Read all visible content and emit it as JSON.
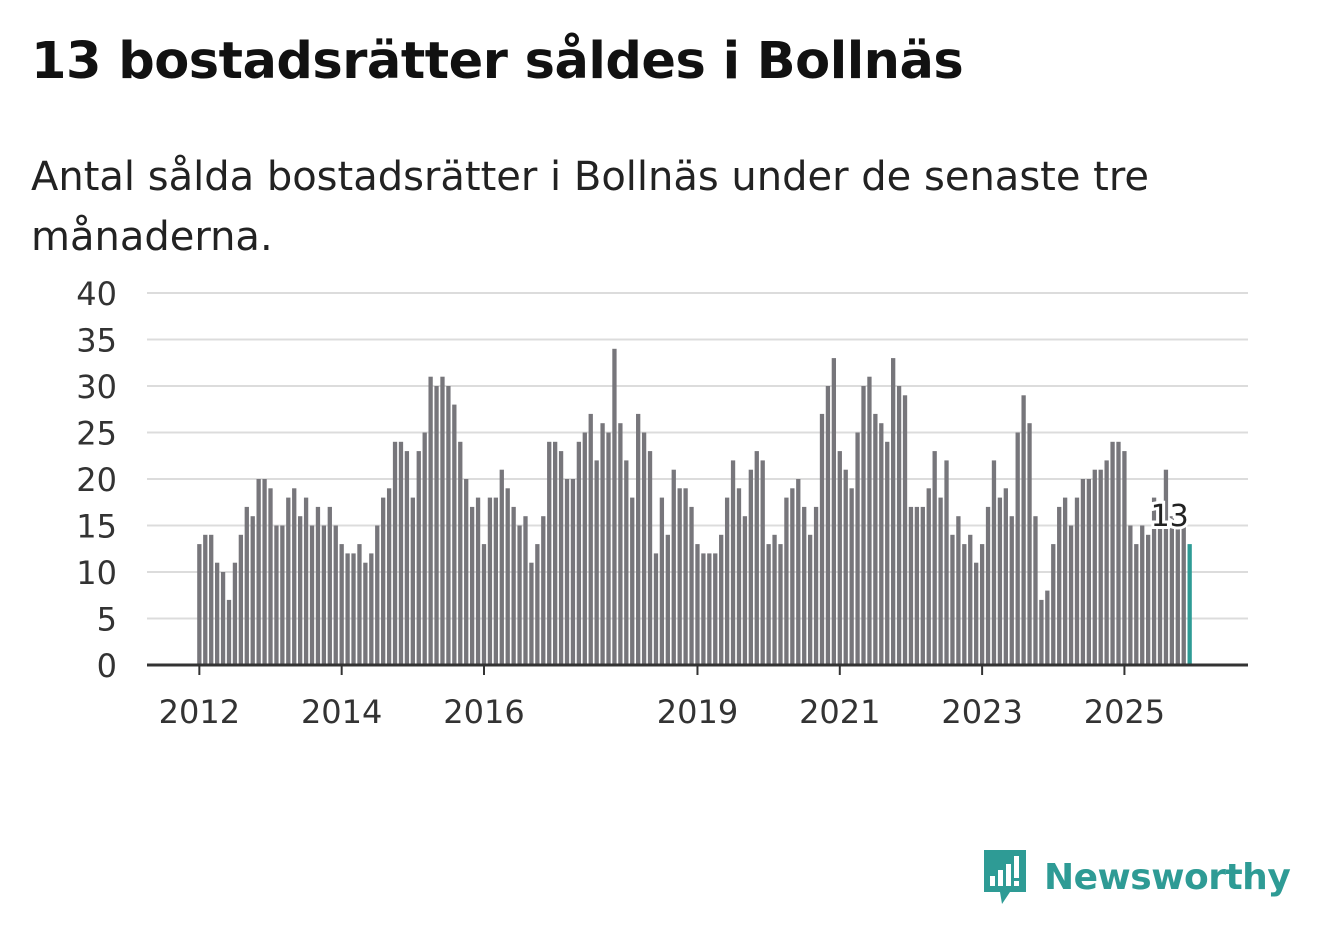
{
  "title": "13 bostadsrätter såldes i Bollnäs",
  "subtitle": "Antal sålda bostadsrätter i Bollnäs under de senaste tre månaderna.",
  "brand": {
    "name": "Newsworthy",
    "icon": "newsworthy-logo-icon"
  },
  "colors": {
    "bar": "#77767b",
    "highlight": "#2e9b95",
    "grid": "#dcdcdc",
    "axis": "#333333",
    "brand": "#2e9b95"
  },
  "chart_data": {
    "type": "bar",
    "title": "13 bostadsrätter såldes i Bollnäs",
    "xlabel": "",
    "ylabel": "",
    "ylim": [
      0,
      40
    ],
    "yticks": [
      0,
      5,
      10,
      15,
      20,
      25,
      30,
      35,
      40
    ],
    "start": {
      "year": 2012,
      "month": 1
    },
    "xtick_labels": [
      {
        "label": "2012",
        "index": 0
      },
      {
        "label": "2014",
        "index": 24
      },
      {
        "label": "2016",
        "index": 48
      },
      {
        "label": "2019",
        "index": 84
      },
      {
        "label": "2021",
        "index": 108
      },
      {
        "label": "2023",
        "index": 132
      },
      {
        "label": "2025",
        "index": 156
      }
    ],
    "values": [
      13,
      14,
      14,
      11,
      10,
      7,
      11,
      14,
      17,
      16,
      20,
      20,
      19,
      15,
      15,
      18,
      19,
      16,
      18,
      15,
      17,
      15,
      17,
      15,
      13,
      12,
      12,
      13,
      11,
      12,
      15,
      18,
      19,
      24,
      24,
      23,
      18,
      23,
      25,
      31,
      30,
      31,
      30,
      28,
      24,
      20,
      17,
      18,
      13,
      18,
      18,
      21,
      19,
      17,
      15,
      16,
      11,
      13,
      16,
      24,
      24,
      23,
      20,
      20,
      24,
      25,
      27,
      22,
      26,
      25,
      34,
      26,
      22,
      18,
      27,
      25,
      23,
      12,
      18,
      14,
      21,
      19,
      19,
      17,
      13,
      12,
      12,
      12,
      14,
      18,
      22,
      19,
      16,
      21,
      23,
      22,
      13,
      14,
      13,
      18,
      19,
      20,
      17,
      14,
      17,
      27,
      30,
      33,
      23,
      21,
      19,
      25,
      30,
      31,
      27,
      26,
      24,
      33,
      30,
      29,
      17,
      17,
      17,
      19,
      23,
      18,
      22,
      14,
      16,
      13,
      14,
      11,
      13,
      17,
      22,
      18,
      19,
      16,
      25,
      29,
      26,
      16,
      7,
      8,
      13,
      17,
      18,
      15,
      18,
      20,
      20,
      21,
      21,
      22,
      24,
      24,
      23,
      15,
      13,
      15,
      14,
      18,
      15,
      21,
      16,
      15,
      15,
      13
    ],
    "highlight_index": 167,
    "annotation": {
      "label": "13",
      "index": 167
    }
  }
}
